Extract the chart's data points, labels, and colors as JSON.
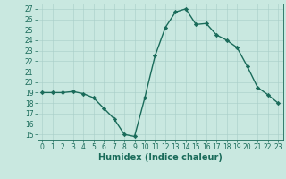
{
  "x": [
    0,
    1,
    2,
    3,
    4,
    5,
    6,
    7,
    8,
    9,
    10,
    11,
    12,
    13,
    14,
    15,
    16,
    17,
    18,
    19,
    20,
    21,
    22,
    23
  ],
  "y": [
    19.0,
    19.0,
    19.0,
    19.1,
    18.9,
    18.5,
    17.5,
    16.5,
    15.0,
    14.8,
    18.5,
    22.5,
    25.2,
    26.7,
    27.0,
    25.5,
    25.6,
    24.5,
    24.0,
    23.3,
    21.5,
    19.5,
    18.8,
    18.0
  ],
  "line_color": "#1a6b5a",
  "marker": "D",
  "marker_size": 2.2,
  "bg_color": "#c9e8e0",
  "grid_color": "#a8cec8",
  "xlabel": "Humidex (Indice chaleur)",
  "ylim": [
    14.5,
    27.5
  ],
  "yticks": [
    15,
    16,
    17,
    18,
    19,
    20,
    21,
    22,
    23,
    24,
    25,
    26,
    27
  ],
  "xticks": [
    0,
    1,
    2,
    3,
    4,
    5,
    6,
    7,
    8,
    9,
    10,
    11,
    12,
    13,
    14,
    15,
    16,
    17,
    18,
    19,
    20,
    21,
    22,
    23
  ],
  "tick_fontsize": 5.5,
  "xlabel_fontsize": 7.0,
  "spine_color": "#1a6b5a",
  "line_width": 1.0
}
